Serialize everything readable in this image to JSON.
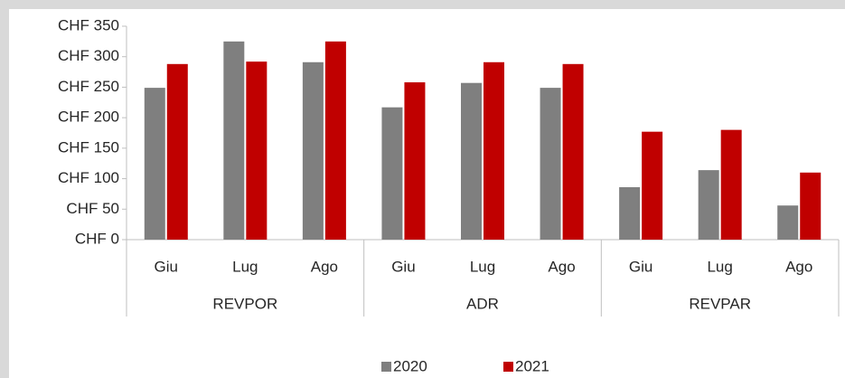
{
  "chart_data": {
    "type": "bar",
    "groups": [
      {
        "name": "REVPOR",
        "categories": [
          "Giu",
          "Lug",
          "Ago"
        ]
      },
      {
        "name": "ADR",
        "categories": [
          "Giu",
          "Lug",
          "Ago"
        ]
      },
      {
        "name": "REVPAR",
        "categories": [
          "Giu",
          "Lug",
          "Ago"
        ]
      }
    ],
    "series": [
      {
        "name": "2020",
        "color": "#7f7f7f",
        "values": [
          249,
          325,
          291,
          217,
          257,
          249,
          86,
          114,
          56
        ]
      },
      {
        "name": "2021",
        "color": "#c00000",
        "values": [
          288,
          292,
          325,
          258,
          291,
          288,
          177,
          180,
          110
        ]
      }
    ],
    "ylim": [
      0,
      350
    ],
    "yticks": [
      {
        "value": 0,
        "label": "CHF 0"
      },
      {
        "value": 50,
        "label": "CHF 50"
      },
      {
        "value": 100,
        "label": "CHF 100"
      },
      {
        "value": 150,
        "label": "CHF 150"
      },
      {
        "value": 200,
        "label": "CHF 200"
      },
      {
        "value": 250,
        "label": "CHF 250"
      },
      {
        "value": 300,
        "label": "CHF 300"
      },
      {
        "value": 350,
        "label": "CHF 350"
      }
    ],
    "legend": "bottom"
  }
}
